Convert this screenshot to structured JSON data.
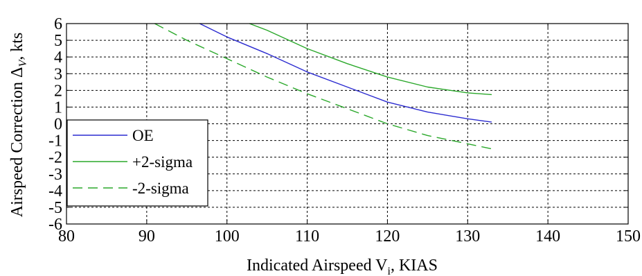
{
  "chart_data": {
    "type": "line",
    "xlabel": "Indicated Airspeed V",
    "xlabel_sub": "i",
    "xlabel_suffix": ", KIAS",
    "ylabel": "Airspeed Correction Δ",
    "ylabel_sub": "V",
    "ylabel_suffix": ", kts",
    "xlim": [
      80,
      150
    ],
    "ylim": [
      -6,
      6
    ],
    "xticks": [
      80,
      90,
      100,
      110,
      120,
      130,
      140,
      150
    ],
    "yticks": [
      -6,
      -5,
      -4,
      -3,
      -2,
      -1,
      0,
      1,
      2,
      3,
      4,
      5,
      6
    ],
    "grid": true,
    "legend_position": "bottom-left",
    "series": [
      {
        "name": "OE",
        "color": "#2b2bd0",
        "dash": "solid",
        "x": [
          96.6,
          100,
          105,
          110,
          115,
          120,
          125,
          130,
          133
        ],
        "y": [
          6.0,
          5.2,
          4.2,
          3.1,
          2.2,
          1.3,
          0.7,
          0.3,
          0.1
        ]
      },
      {
        "name": "+2-sigma",
        "color": "#2aa82a",
        "dash": "solid",
        "x": [
          102.8,
          105,
          110,
          115,
          120,
          125,
          130,
          133
        ],
        "y": [
          6.0,
          5.6,
          4.5,
          3.6,
          2.8,
          2.2,
          1.85,
          1.75
        ]
      },
      {
        "name": "-2-sigma",
        "color": "#2aa82a",
        "dash": "dashed",
        "x": [
          91,
          95,
          100,
          105,
          110,
          115,
          120,
          125,
          130,
          133
        ],
        "y": [
          6.0,
          5.0,
          3.9,
          2.8,
          1.8,
          0.9,
          0.0,
          -0.7,
          -1.2,
          -1.5
        ]
      }
    ]
  }
}
